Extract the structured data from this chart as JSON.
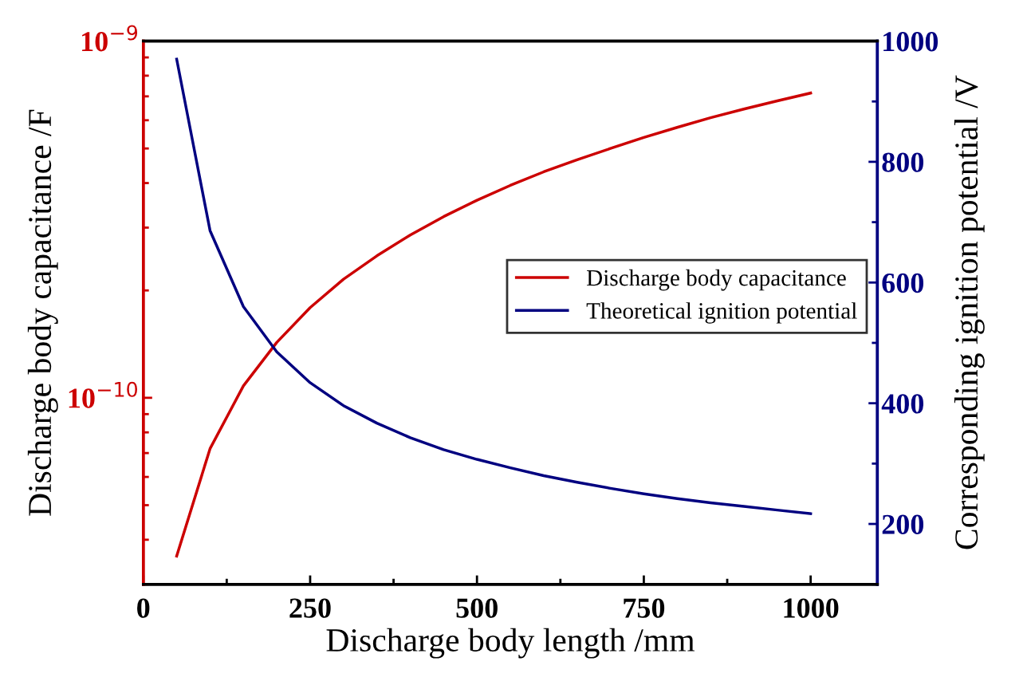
{
  "chart_data": {
    "type": "line",
    "xlabel": "Discharge body length /mm",
    "ylabel": "Discharge body capacitance /F",
    "y2label": "Corresponding ignition potential /V",
    "x": [
      50,
      100,
      150,
      200,
      250,
      300,
      350,
      400,
      450,
      500,
      550,
      600,
      650,
      700,
      750,
      800,
      850,
      900,
      950,
      1000
    ],
    "series": [
      {
        "name": "Discharge body capacitance",
        "color": "#cc0000",
        "values": [
          3.6e-11,
          7.2e-11,
          1.08e-10,
          1.43e-10,
          1.79e-10,
          2.15e-10,
          2.5e-10,
          2.86e-10,
          3.22e-10,
          3.58e-10,
          3.94e-10,
          4.3e-10,
          4.65e-10,
          5e-10,
          5.37e-10,
          5.73e-10,
          6.1e-10,
          6.45e-10,
          6.8e-10,
          7.15e-10
        ]
      },
      {
        "name": "Theoretical ignition potential",
        "color": "#000080",
        "axis": "y2",
        "values": [
          970,
          686,
          560,
          485,
          434,
          396,
          367,
          343,
          323,
          307,
          293,
          280,
          269,
          259,
          250,
          242,
          235,
          229,
          223,
          217
        ]
      }
    ],
    "xlim": [
      0,
      1100
    ],
    "xticks": [
      0,
      250,
      500,
      750,
      1000
    ],
    "log": "y",
    "ylim": [
      3e-11,
      1e-09
    ],
    "yticks": [
      {
        "value": 1e-10,
        "label": "10$^{−10}$"
      },
      {
        "value": 1e-09,
        "label": "10$^{−9}$"
      }
    ],
    "y2lim": [
      100,
      1000
    ],
    "y2ticks": [
      200,
      400,
      600,
      800,
      1000
    ],
    "legend": "right",
    "grid": false,
    "marker": "none",
    "line_style": "solid"
  }
}
